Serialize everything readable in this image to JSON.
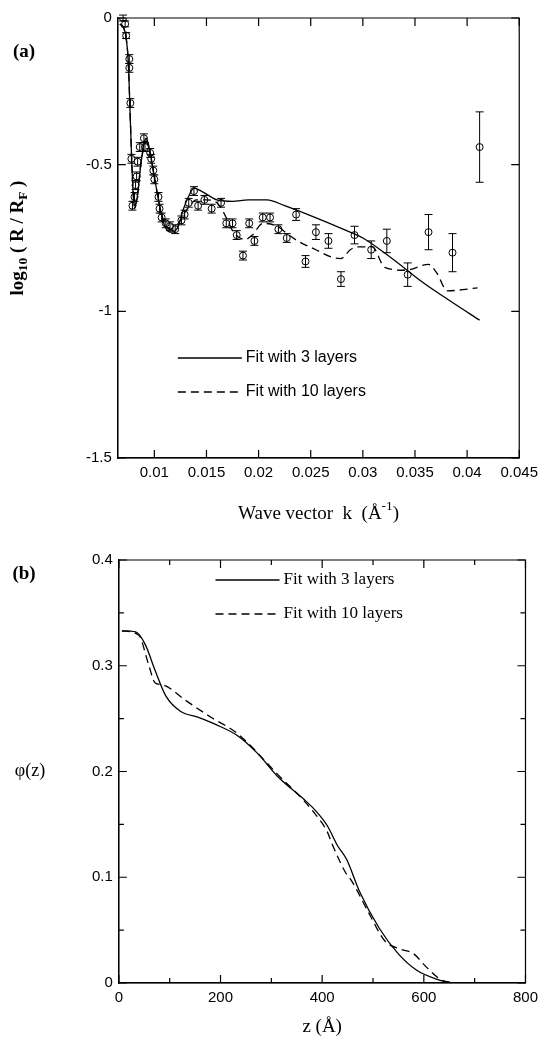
{
  "chart_data": [
    {
      "type": "scatter",
      "annotations": [
        "(a)"
      ],
      "xlabel": "Wave vector  k  (Å$^{-1}$)",
      "ylabel": "log$_{10}$ ( R / R$_{F}$ )",
      "xlim": [
        0.0065,
        0.045
      ],
      "xticks": [
        0.01,
        0.015,
        0.02,
        0.025,
        0.03,
        0.035,
        0.04,
        0.045
      ],
      "ylim": [
        -1.5,
        0
      ],
      "yticks": [
        -1.5,
        -1,
        -0.5,
        0
      ],
      "legend": "bottom left",
      "series": [
        {
          "type": "scatter",
          "color": "#000000",
          "marker": "circle",
          "x": [
            0.007,
            0.0072,
            0.0073,
            0.0076,
            0.0076,
            0.0077,
            0.0078,
            0.0079,
            0.0081,
            0.0082,
            0.0083,
            0.0084,
            0.0086,
            0.009,
            0.0091,
            0.0096,
            0.0097,
            0.0099,
            0.01,
            0.0104,
            0.0105,
            0.0107,
            0.0111,
            0.0115,
            0.012,
            0.0126,
            0.0129,
            0.0133,
            0.0138,
            0.0142,
            0.0148,
            0.0155,
            0.0164,
            0.0169,
            0.0175,
            0.0179,
            0.0185,
            0.0191,
            0.0196,
            0.0204,
            0.0211,
            0.0219,
            0.0227,
            0.0236,
            0.0245,
            0.0255,
            0.0267,
            0.0279,
            0.0292,
            0.0308,
            0.0323,
            0.0343,
            0.0363,
            0.0386,
            0.0412
          ],
          "values": [
            0,
            -0.02,
            -0.06,
            -0.14,
            -0.17,
            -0.29,
            -0.48,
            -0.64,
            -0.61,
            -0.57,
            -0.54,
            -0.49,
            -0.44,
            -0.41,
            -0.44,
            -0.46,
            -0.48,
            -0.52,
            -0.55,
            -0.61,
            -0.65,
            -0.68,
            -0.7,
            -0.71,
            -0.72,
            -0.69,
            -0.67,
            -0.63,
            -0.59,
            -0.64,
            -0.62,
            -0.65,
            -0.63,
            -0.7,
            -0.7,
            -0.74,
            -0.81,
            -0.7,
            -0.76,
            -0.68,
            -0.68,
            -0.72,
            -0.75,
            -0.67,
            -0.83,
            -0.73,
            -0.76,
            -0.89,
            -0.74,
            -0.79,
            -0.76,
            -0.875,
            -0.73,
            -0.8,
            -0.44
          ],
          "errors": [
            0.01,
            0.01,
            0.01,
            0.015,
            0.015,
            0.015,
            0.015,
            0.015,
            0.015,
            0.015,
            0.015,
            0.015,
            0.015,
            0.015,
            0.015,
            0.015,
            0.015,
            0.015,
            0.015,
            0.015,
            0.015,
            0.015,
            0.015,
            0.015,
            0.015,
            0.015,
            0.015,
            0.015,
            0.015,
            0.015,
            0.015,
            0.015,
            0.015,
            0.015,
            0.015,
            0.015,
            0.015,
            0.015,
            0.015,
            0.015,
            0.015,
            0.015,
            0.015,
            0.02,
            0.02,
            0.025,
            0.025,
            0.025,
            0.03,
            0.03,
            0.04,
            0.04,
            0.06,
            0.065,
            0.12
          ]
        },
        {
          "type": "line",
          "name": "Fit with 3 layers",
          "color": "#000000",
          "line_style": "solid",
          "x": [
            0.0067,
            0.0072,
            0.0075,
            0.0077,
            0.0079,
            0.0081,
            0.0084,
            0.0087,
            0.009,
            0.0092,
            0.0095,
            0.01,
            0.0105,
            0.011,
            0.0117,
            0.0123,
            0.0128,
            0.0134,
            0.0138,
            0.0145,
            0.016,
            0.0175,
            0.019,
            0.0208,
            0.0225,
            0.0254,
            0.0281,
            0.03,
            0.0328,
            0.0357,
            0.0386,
            0.0412
          ],
          "values": [
            -0.02,
            -0.05,
            -0.15,
            -0.35,
            -0.55,
            -0.65,
            -0.6,
            -0.5,
            -0.43,
            -0.41,
            -0.44,
            -0.54,
            -0.64,
            -0.71,
            -0.73,
            -0.71,
            -0.65,
            -0.6,
            -0.58,
            -0.59,
            -0.62,
            -0.625,
            -0.62,
            -0.62,
            -0.64,
            -0.68,
            -0.72,
            -0.75,
            -0.82,
            -0.9,
            -0.97,
            -1.03
          ]
        },
        {
          "type": "line",
          "name": "Fit with 10 layers",
          "color": "#000000",
          "line_style": "dashed",
          "x": [
            0.0067,
            0.0072,
            0.0075,
            0.0077,
            0.0079,
            0.0081,
            0.0084,
            0.0087,
            0.009,
            0.0092,
            0.0095,
            0.01,
            0.0105,
            0.011,
            0.0117,
            0.0123,
            0.0128,
            0.0134,
            0.014,
            0.015,
            0.016,
            0.0166,
            0.0176,
            0.0187,
            0.0194,
            0.0204,
            0.0218,
            0.0229,
            0.024,
            0.0255,
            0.027,
            0.0279,
            0.0288,
            0.0294,
            0.0309,
            0.0321,
            0.0341,
            0.0363,
            0.0371,
            0.0381,
            0.041
          ],
          "values": [
            -0.02,
            -0.05,
            -0.15,
            -0.35,
            -0.55,
            -0.64,
            -0.6,
            -0.5,
            -0.44,
            -0.42,
            -0.45,
            -0.54,
            -0.64,
            -0.7,
            -0.72,
            -0.7,
            -0.67,
            -0.64,
            -0.62,
            -0.62,
            -0.63,
            -0.66,
            -0.73,
            -0.755,
            -0.74,
            -0.7,
            -0.71,
            -0.74,
            -0.765,
            -0.79,
            -0.815,
            -0.82,
            -0.79,
            -0.78,
            -0.78,
            -0.85,
            -0.86,
            -0.84,
            -0.87,
            -0.93,
            -0.92
          ]
        }
      ]
    },
    {
      "type": "line",
      "annotations": [
        "(b)"
      ],
      "xlabel": "z (Å)",
      "ylabel": "φ(z)",
      "xlim": [
        0,
        800
      ],
      "xticks": [
        0,
        {
          "value": 100,
          "label": null
        },
        200,
        {
          "value": 300,
          "label": null
        },
        400,
        {
          "value": 500,
          "label": null
        },
        600,
        {
          "value": 700,
          "label": null
        },
        800
      ],
      "ylim": [
        0,
        0.4
      ],
      "yticks": [
        0,
        {
          "value": 0.05,
          "label": null
        },
        0.1,
        {
          "value": 0.15,
          "label": null
        },
        0.2,
        {
          "value": 0.25,
          "label": null
        },
        0.3,
        {
          "value": 0.35,
          "label": null
        },
        0.4
      ],
      "legend": "top right",
      "series": [
        {
          "name": "Fit with 3 layers",
          "color": "#000000",
          "line_style": "solid",
          "x": [
            6,
            33,
            52,
            71,
            93,
            121,
            158,
            188,
            233,
            275,
            313,
            368,
            387,
            411,
            430,
            448,
            474,
            512,
            549,
            586,
            629,
            653
          ],
          "values": [
            0.333,
            0.332,
            0.32,
            0.296,
            0.271,
            0.257,
            0.251,
            0.245,
            0.234,
            0.216,
            0.195,
            0.172,
            0.163,
            0.148,
            0.13,
            0.117,
            0.086,
            0.052,
            0.028,
            0.012,
            0.003,
            0
          ]
        },
        {
          "name": "Fit with 10 layers",
          "color": "#000000",
          "line_style": "dashed",
          "x": [
            6,
            39,
            58,
            71,
            86,
            132,
            182,
            233,
            313,
            381,
            411,
            419,
            449,
            456,
            493,
            523,
            554,
            579,
            605,
            634,
            660
          ],
          "values": [
            0.333,
            0.329,
            0.302,
            0.284,
            0.282,
            0.267,
            0.251,
            0.236,
            0.197,
            0.163,
            0.142,
            0.132,
            0.102,
            0.098,
            0.065,
            0.04,
            0.032,
            0.028,
            0.015,
            0.003,
            0
          ]
        }
      ]
    }
  ]
}
